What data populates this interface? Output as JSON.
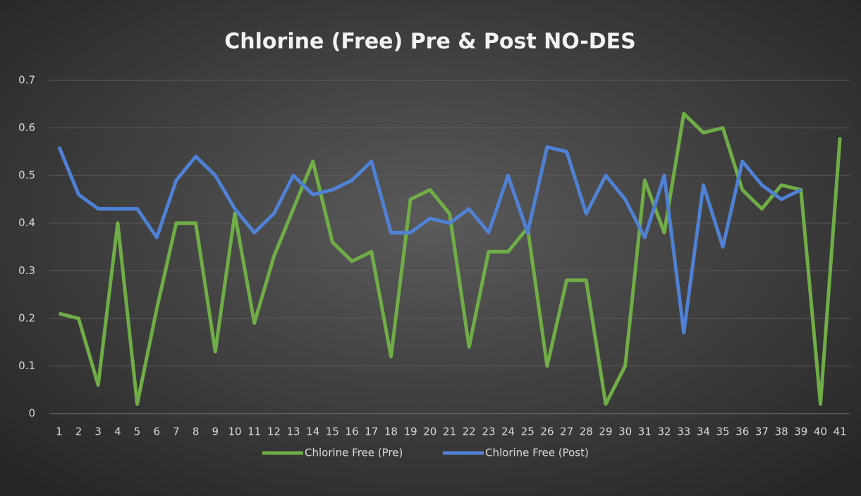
{
  "chart_data": {
    "type": "line",
    "title": "Chlorine (Free) Pre & Post NO-DES",
    "categories": [
      "1",
      "2",
      "3",
      "4",
      "5",
      "6",
      "7",
      "8",
      "9",
      "10",
      "11",
      "12",
      "13",
      "14",
      "15",
      "16",
      "17",
      "18",
      "19",
      "20",
      "21",
      "22",
      "23",
      "24",
      "25",
      "26",
      "27",
      "28",
      "29",
      "30",
      "31",
      "32",
      "33",
      "34",
      "35",
      "36",
      "37",
      "38",
      "39",
      "40",
      "41"
    ],
    "series": [
      {
        "name": "Chlorine Free (Pre)",
        "color": "#70ad47",
        "values": [
          0.21,
          0.2,
          0.06,
          0.4,
          0.02,
          0.22,
          0.4,
          0.4,
          0.13,
          0.42,
          0.19,
          0.33,
          0.43,
          0.53,
          0.36,
          0.32,
          0.34,
          0.12,
          0.45,
          0.47,
          0.42,
          0.14,
          0.34,
          0.34,
          0.39,
          0.1,
          0.28,
          0.28,
          0.02,
          0.1,
          0.49,
          0.38,
          0.63,
          0.59,
          0.6,
          0.47,
          0.43,
          0.48,
          0.47,
          0.02,
          0.58
        ]
      },
      {
        "name": "Chlorine Free (Post)",
        "color": "#4f81d4",
        "values": [
          0.56,
          0.46,
          0.43,
          0.43,
          0.43,
          0.37,
          0.49,
          0.54,
          0.5,
          0.43,
          0.38,
          0.42,
          0.5,
          0.46,
          0.47,
          0.49,
          0.53,
          0.38,
          0.38,
          0.41,
          0.4,
          0.43,
          0.38,
          0.5,
          0.38,
          0.56,
          0.55,
          0.42,
          0.5,
          0.45,
          0.37,
          0.5,
          0.17,
          0.48,
          0.35,
          0.53,
          0.48,
          0.45,
          0.47,
          null,
          null
        ]
      }
    ],
    "ylim": [
      0,
      0.7
    ],
    "yticks": [
      0,
      0.1,
      0.2,
      0.3,
      0.4,
      0.5,
      0.6,
      0.7
    ],
    "grid": true,
    "legend": "bottom"
  }
}
